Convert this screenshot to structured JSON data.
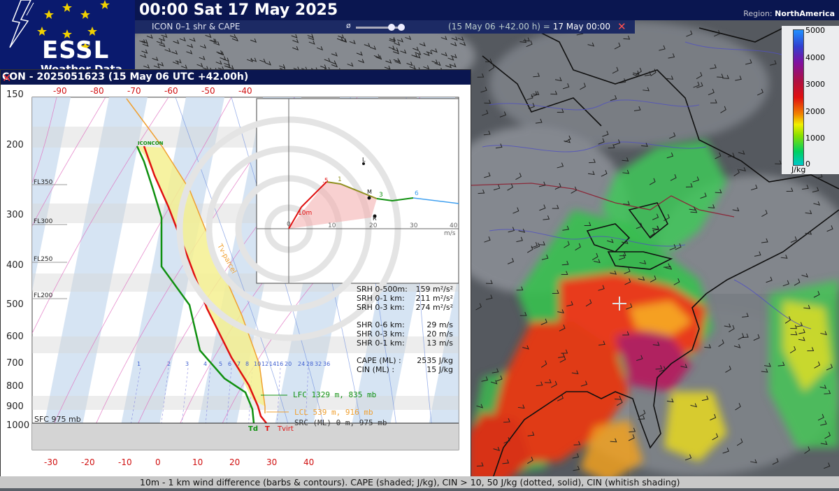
{
  "header": {
    "datetime": "00:00 Sat 17 May 2025",
    "region_label": "Region:",
    "region_value": "NorthAmerica"
  },
  "logo": {
    "text": "ESSL",
    "subtext": "Weather Data Display"
  },
  "layer": {
    "name": "ICON 0–1 shr & CAPE",
    "opacity_symbol": "ø",
    "valid_prefix": "(15 May 06 +42.00 h) =",
    "valid_date": "17 May 00:00",
    "close_symbol": "✕"
  },
  "legend": {
    "labels": [
      "5000",
      "4000",
      "3000",
      "2000",
      "1000",
      "0"
    ],
    "unit": "J/kg"
  },
  "skewt": {
    "title": "CON - 2025051623 (15 May 06 UTC +42.00h)",
    "close_symbol": "✕",
    "top_temps": [
      "-90",
      "-80",
      "-70",
      "-60",
      "-50",
      "-40"
    ],
    "bottom_temps": [
      "-30",
      "-20",
      "-10",
      "0",
      "10",
      "20",
      "30",
      "40"
    ],
    "pressures": [
      "150",
      "200",
      "300",
      "400",
      "500",
      "600",
      "700",
      "800",
      "900",
      "1000"
    ],
    "flight_levels": [
      "FL350",
      "FL300",
      "FL250",
      "FL200"
    ],
    "mixing_ratios": [
      "1",
      "2",
      "3",
      "4",
      "5",
      "6",
      "7",
      "8",
      "10",
      "12",
      "14",
      "16",
      "20",
      "24",
      "28",
      "32",
      "36"
    ],
    "model_label": "ICONCON",
    "parcel_label": "Tv-parcel",
    "sfc_label": "SFC 975 mb",
    "lfc_label": "LFC 1329 m, 835 mb",
    "lcl_label": "LCL 539 m, 916 mb",
    "src_label": "SRC (ML) 0 m, 975 mb",
    "td_label": "Td",
    "t_label": "T",
    "tvirt_label": "Tvirt",
    "hodograph": {
      "x_ticks": [
        "0",
        "10",
        "20",
        "30",
        "40"
      ],
      "unit": "m/s",
      "labels": [
        "10m",
        ".5",
        "1",
        "3",
        "6",
        "L",
        "M",
        "R"
      ]
    },
    "params": [
      {
        "label": "SRH 0-500m:",
        "value": "159 m²/s²"
      },
      {
        "label": "SRH 0-1 km:",
        "value": "211 m²/s²"
      },
      {
        "label": "SRH 0-3 km:",
        "value": "274 m²/s²"
      },
      {
        "label": "SHR 0-6 km:",
        "value": "29 m/s"
      },
      {
        "label": "SHR 0-3 km:",
        "value": "20 m/s"
      },
      {
        "label": "SHR 0-1 km:",
        "value": "13 m/s"
      },
      {
        "label": "CAPE (ML) :",
        "value": "2535 J/kg"
      },
      {
        "label": "CIN  (ML) :",
        "value": "15 J/kg"
      }
    ]
  },
  "footer": {
    "caption": "10m - 1 km wind difference (barbs & contours). CAPE (shaded; J/kg), CIN > 10, 50 J/kg (dotted, solid), CIN (whitish shading)"
  }
}
